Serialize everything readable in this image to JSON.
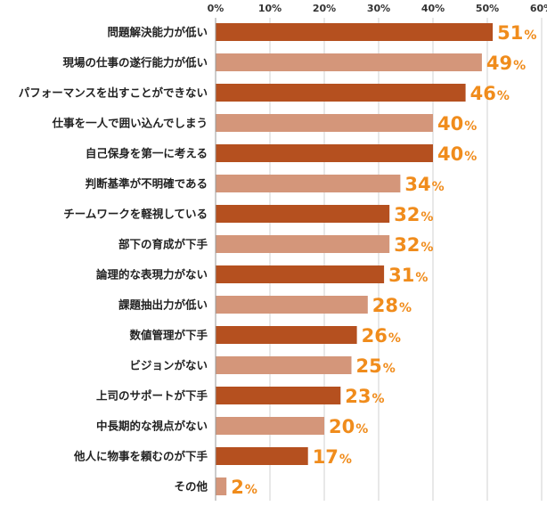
{
  "chart_data": {
    "type": "bar",
    "orientation": "horizontal",
    "title": "",
    "xlabel": "",
    "ylabel": "",
    "xlim": [
      0,
      60
    ],
    "ticks": [
      "0%",
      "10%",
      "20%",
      "30%",
      "40%",
      "50%",
      "60%"
    ],
    "tick_values": [
      0,
      10,
      20,
      30,
      40,
      50,
      60
    ],
    "unit": "%",
    "grid": true,
    "categories": [
      "問題解決能力が低い",
      "現場の仕事の遂行能力が低い",
      "パフォーマンスを出すことができない",
      "仕事を一人で囲い込んでしまう",
      "自己保身を第一に考える",
      "判断基準が不明確である",
      "チームワークを軽視している",
      "部下の育成が下手",
      "論理的な表現力がない",
      "課題抽出力が低い",
      "数値管理が下手",
      "ビジョンがない",
      "上司のサポートが下手",
      "中長期的な視点がない",
      "他人に物事を頼むのが下手",
      "その他"
    ],
    "values": [
      51,
      49,
      46,
      40,
      40,
      34,
      32,
      32,
      31,
      28,
      26,
      25,
      23,
      20,
      17,
      2
    ],
    "colors": {
      "bar_dark": "#b5501f",
      "bar_light": "#d4967a",
      "value_label": "#f08c1c",
      "grid": "#d0d0d0",
      "axis": "#999999"
    }
  }
}
